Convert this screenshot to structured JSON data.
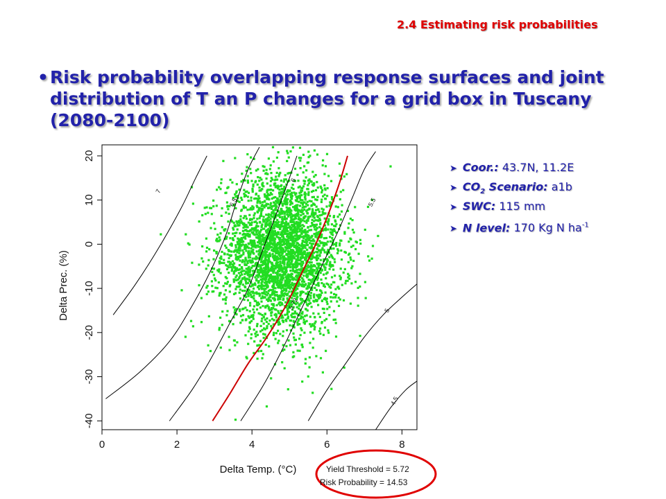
{
  "slide": {
    "section_title": "2.4 Estimating risk probabilities",
    "bullet": "•",
    "headline": "Risk probability overlapping response surfaces and joint distribution of T an P changes for a grid box in Tuscany (2080-2100)"
  },
  "info": [
    {
      "label": "Coor.:",
      "value": "43.7N, 11.2E"
    },
    {
      "label_main": "CO",
      "label_sub": "2",
      "label_rest": " Scenario:",
      "value": "a1b"
    },
    {
      "label": "SWC:",
      "value": "115 mm"
    },
    {
      "label": "N level:",
      "value_main": "170 Kg N ha",
      "value_sup": "-1"
    }
  ],
  "colors": {
    "title_red": "#e00000",
    "headline_blue": "#2222aa",
    "points": "#22dd22",
    "threshold_line": "#cc0000",
    "contours": "#000000",
    "ellipse": "#e00000"
  },
  "chart_data": {
    "type": "scatter",
    "xlabel": "Delta Temp. (°C)",
    "ylabel": "Delta Prec. (%)",
    "xlim": [
      0,
      8.4
    ],
    "ylim": [
      -42,
      22.5
    ],
    "x_ticks": [
      "0",
      "2",
      "4",
      "6",
      "8"
    ],
    "x_tick_values": [
      0,
      2,
      4,
      6,
      8
    ],
    "y_ticks": [
      "-40",
      "-30",
      "-20",
      "-10",
      "0",
      "10",
      "20"
    ],
    "y_tick_values": [
      -40,
      -30,
      -20,
      -10,
      0,
      10,
      20
    ],
    "scatter": {
      "description_center": [
        4.8,
        -2
      ],
      "sd": [
        0.8,
        9
      ],
      "n_points": 3500,
      "color": "#22dd22"
    },
    "contours": [
      {
        "label": "7",
        "points": [
          [
            0.3,
            -16
          ],
          [
            0.9,
            -9
          ],
          [
            1.5,
            -1
          ],
          [
            2.1,
            8
          ],
          [
            2.5,
            15
          ],
          [
            2.8,
            20
          ]
        ],
        "label_at": [
          1.5,
          12
        ]
      },
      {
        "label": "6.5",
        "points": [
          [
            0.1,
            -35
          ],
          [
            1.0,
            -29
          ],
          [
            1.8,
            -22
          ],
          [
            2.4,
            -14
          ],
          [
            2.9,
            -6
          ],
          [
            3.3,
            2
          ],
          [
            3.6,
            10
          ],
          [
            3.9,
            17
          ],
          [
            4.2,
            22
          ]
        ],
        "label_at": [
          3.5,
          9.5
        ]
      },
      {
        "label": "6",
        "points": [
          [
            1.8,
            -40
          ],
          [
            2.4,
            -33
          ],
          [
            2.9,
            -26
          ],
          [
            3.4,
            -18
          ],
          [
            3.9,
            -10
          ],
          [
            4.3,
            -1
          ],
          [
            4.7,
            8
          ],
          [
            5.0,
            15
          ],
          [
            5.2,
            20
          ]
        ],
        "label_at": [
          5.1,
          14.5
        ]
      },
      {
        "label": "5.5",
        "points": [
          [
            3.7,
            -40
          ],
          [
            4.3,
            -32
          ],
          [
            4.8,
            -24
          ],
          [
            5.3,
            -15
          ],
          [
            5.8,
            -6
          ],
          [
            6.3,
            3
          ],
          [
            6.7,
            11
          ],
          [
            7.0,
            17
          ],
          [
            7.3,
            21
          ]
        ],
        "label_at": [
          7.2,
          9.5
        ]
      },
      {
        "label": "5",
        "points": [
          [
            5.5,
            -40
          ],
          [
            6.0,
            -33
          ],
          [
            6.5,
            -27
          ],
          [
            7.0,
            -21
          ],
          [
            7.5,
            -16
          ],
          [
            8.0,
            -12
          ],
          [
            8.4,
            -9
          ]
        ],
        "label_at": [
          7.6,
          -15
        ]
      },
      {
        "label": "4.5",
        "points": [
          [
            7.3,
            -42
          ],
          [
            7.7,
            -37
          ],
          [
            8.1,
            -33
          ],
          [
            8.4,
            -31
          ]
        ],
        "label_at": [
          7.8,
          -35.5
        ]
      }
    ],
    "threshold_curve": {
      "label": "5.72",
      "points": [
        [
          2.95,
          -40
        ],
        [
          3.4,
          -34
        ],
        [
          3.9,
          -27
        ],
        [
          4.4,
          -21
        ],
        [
          4.9,
          -14
        ],
        [
          5.3,
          -7
        ],
        [
          5.7,
          0
        ],
        [
          6.0,
          6
        ],
        [
          6.3,
          13
        ],
        [
          6.55,
          20
        ]
      ],
      "label_at": [
        5.1,
        -13.5
      ]
    },
    "annotation": {
      "yield_threshold": "Yield Threshold = 5.72",
      "risk_probability": "Risk Probability = 14.53"
    }
  }
}
